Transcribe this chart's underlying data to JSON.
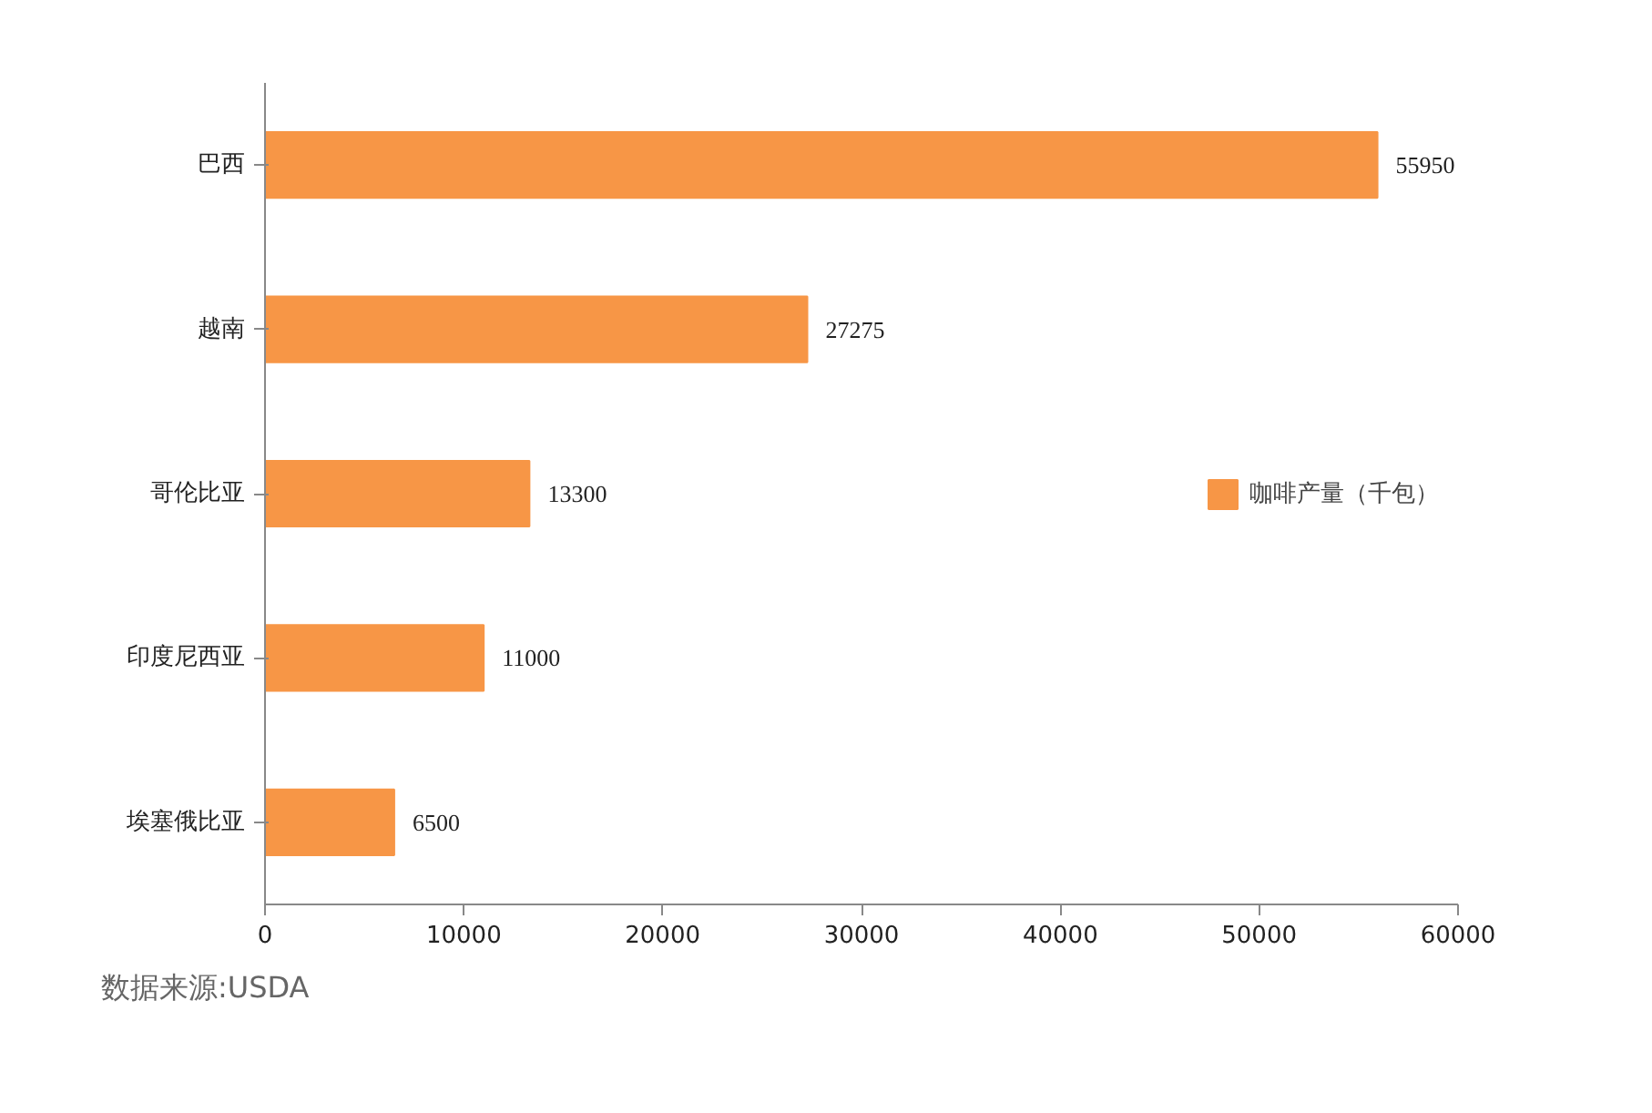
{
  "chart_data": {
    "type": "bar",
    "orientation": "horizontal",
    "categories": [
      "巴西",
      "越南",
      "哥伦比亚",
      "印度尼西亚",
      "埃塞俄比亚"
    ],
    "series": [
      {
        "name": "咖啡产量（千包）",
        "color": "#f79646",
        "values": [
          55950,
          27275,
          13300,
          11000,
          6500
        ]
      }
    ],
    "xlim": [
      0,
      60000
    ],
    "xticks": [
      0,
      10000,
      20000,
      30000,
      40000,
      50000,
      60000
    ],
    "data_labels": true,
    "grid": false,
    "legend": "right",
    "annotations": [
      "数据来源:USDA"
    ]
  }
}
